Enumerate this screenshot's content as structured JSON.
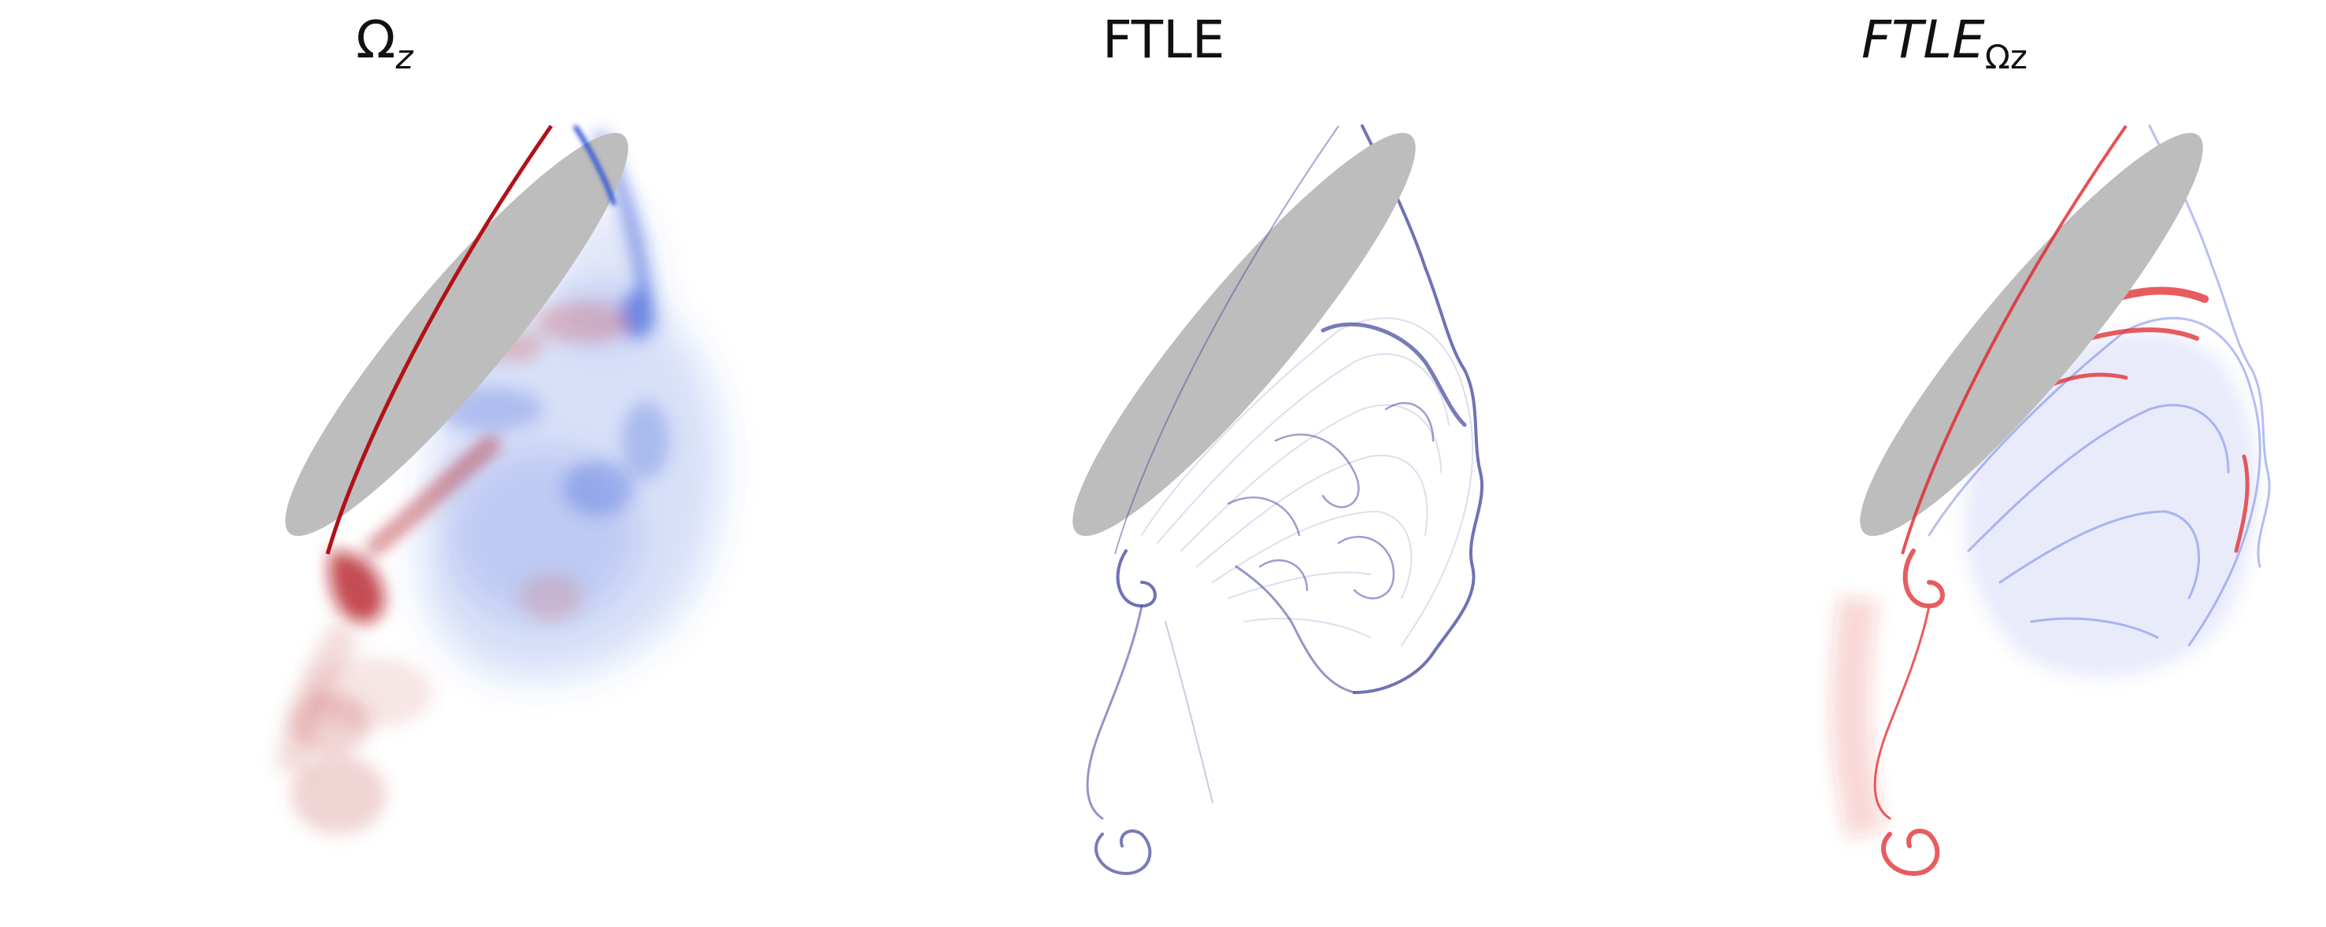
{
  "panels": [
    {
      "title_main": "Ω",
      "title_sub": "z",
      "main_italic": false,
      "sub_italic": true
    },
    {
      "title_main": "FTLE",
      "title_sub": "",
      "main_italic": true,
      "sub_italic": false
    },
    {
      "title_main": "FTLE",
      "title_sub": "Ωz",
      "main_italic": true,
      "sub_italic": false
    }
  ],
  "colors": {
    "airfoil": "#bdbdbd",
    "positive_vorticity": "#b11217",
    "negative_vorticity": "#2d55d6",
    "ftle": "#4b4fa0",
    "ftle_omega_pos": "#e0262a",
    "ftle_omega_neg": "#4a5ee0",
    "background": "#ffffff"
  }
}
